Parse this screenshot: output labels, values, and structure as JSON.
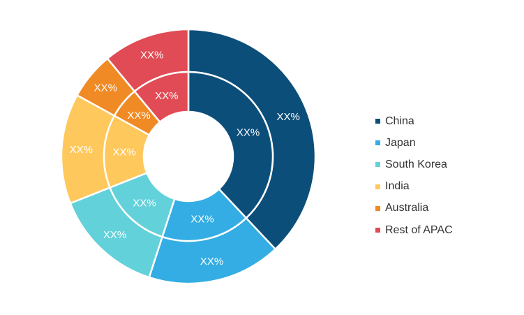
{
  "chart_data": {
    "type": "pie",
    "categories": [
      "China",
      "Japan",
      "South Korea",
      "India",
      "Australia",
      "Rest of APAC"
    ],
    "colors": [
      "#0c4e7a",
      "#33ade3",
      "#63d1da",
      "#ffc85c",
      "#f08a25",
      "#e04b55"
    ],
    "series": [
      {
        "ring": "outer",
        "values": [
          38,
          17,
          14,
          14,
          6,
          11
        ],
        "labels": [
          "XX%",
          "XX%",
          "XX%",
          "XX%",
          "XX%",
          "XX%"
        ]
      },
      {
        "ring": "inner",
        "values": [
          38,
          17,
          14,
          14,
          6,
          11
        ],
        "labels": [
          "XX%",
          "XX%",
          "XX%",
          "XX%",
          "XX%",
          "XX%"
        ]
      }
    ],
    "legend_position": "right"
  }
}
